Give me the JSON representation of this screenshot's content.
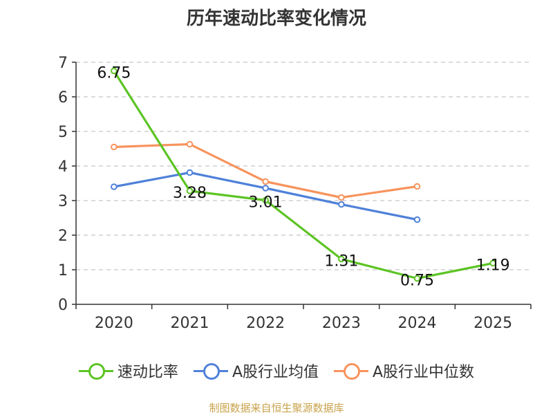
{
  "title": "历年速动比率变化情况",
  "source": "制图数据来自恒生聚源数据库",
  "chart_data": {
    "type": "line",
    "title": "历年速动比率变化情况",
    "categories": [
      "2020",
      "2021",
      "2022",
      "2023",
      "2024",
      "2025"
    ],
    "ylim": [
      0,
      7
    ],
    "yticks": [
      "0",
      "1",
      "2",
      "3",
      "4",
      "5",
      "6",
      "7"
    ],
    "grid": true,
    "legend_position": "bottom",
    "series": [
      {
        "name": "速动比率",
        "color": "#5cc424",
        "values": [
          6.75,
          3.28,
          3.01,
          1.31,
          0.75,
          1.19
        ],
        "labels": [
          "6.75",
          "3.28",
          "3.01",
          "1.31",
          "0.75",
          "1.19"
        ]
      },
      {
        "name": "A股行业均值",
        "color": "#4f81d9",
        "values": [
          3.4,
          3.81,
          3.36,
          2.89,
          2.45,
          null
        ]
      },
      {
        "name": "A股行业中位数",
        "color": "#f7935d",
        "values": [
          4.55,
          4.63,
          3.55,
          3.09,
          3.41,
          null
        ]
      }
    ]
  }
}
